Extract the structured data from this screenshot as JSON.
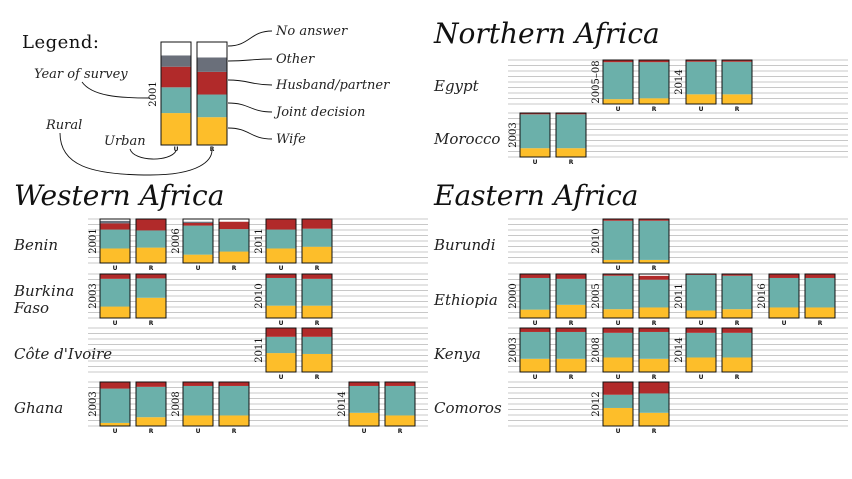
{
  "legend": {
    "title": "Legend:",
    "labels": {
      "no_answer": "No answer",
      "other": "Other",
      "husband": "Husband/partner",
      "joint": "Joint decision",
      "wife": "Wife",
      "year_of_survey": "Year of survey",
      "rural": "Rural",
      "urban": "Urban"
    },
    "example_year": "2001",
    "example_bars": [
      {
        "key": "U",
        "values": [
          0.31,
          0.25,
          0.2,
          0.11,
          0.09
        ]
      },
      {
        "key": "R",
        "values": [
          0.27,
          0.22,
          0.22,
          0.14,
          0.11
        ]
      }
    ]
  },
  "colors": {
    "wife": "#FDBE2A",
    "joint": "#6BB0AA",
    "husband": "#B12A2A",
    "other": "#6A6F7A",
    "no_answer": "#FFFFFF"
  },
  "chart_data": {
    "type": "bar",
    "subtype": "stacked-100-percent",
    "categories_order": [
      "Wife",
      "Joint decision",
      "Husband/partner",
      "Other",
      "No answer"
    ],
    "regions": [
      {
        "name": "Western Africa",
        "countries": [
          {
            "name": "Benin",
            "surveys": [
              {
                "year": "2001",
                "bars": [
                  {
                    "key": "U",
                    "values": [
                      0.33,
                      0.43,
                      0.14,
                      0.06,
                      0.04
                    ]
                  },
                  {
                    "key": "R",
                    "values": [
                      0.35,
                      0.39,
                      0.26,
                      0,
                      0
                    ]
                  }
                ]
              },
              {
                "year": "2006",
                "bars": [
                  {
                    "key": "U",
                    "values": [
                      0.19,
                      0.66,
                      0.06,
                      0.03,
                      0.06
                    ]
                  },
                  {
                    "key": "R",
                    "values": [
                      0.26,
                      0.51,
                      0.17,
                      0,
                      0.06
                    ]
                  }
                ]
              },
              {
                "year": "2011",
                "bars": [
                  {
                    "key": "U",
                    "values": [
                      0.33,
                      0.43,
                      0.24,
                      0,
                      0
                    ]
                  },
                  {
                    "key": "R",
                    "values": [
                      0.37,
                      0.41,
                      0.22,
                      0,
                      0
                    ]
                  }
                ]
              }
            ]
          },
          {
            "name": "Burkina Faso",
            "surveys": [
              {
                "year": "2003",
                "bars": [
                  {
                    "key": "U",
                    "values": [
                      0.26,
                      0.63,
                      0.11,
                      0,
                      0
                    ]
                  },
                  {
                    "key": "R",
                    "values": [
                      0.46,
                      0.44,
                      0.1,
                      0,
                      0
                    ]
                  }
                ]
              },
              {
                "year": "2010",
                "bars": [
                  {
                    "key": "U",
                    "values": [
                      0.28,
                      0.63,
                      0.09,
                      0,
                      0
                    ]
                  },
                  {
                    "key": "R",
                    "values": [
                      0.28,
                      0.61,
                      0.11,
                      0,
                      0
                    ]
                  }
                ]
              }
            ]
          },
          {
            "name": "Côte d'Ivoire",
            "surveys": [
              {
                "year": "2011",
                "bars": [
                  {
                    "key": "U",
                    "values": [
                      0.43,
                      0.37,
                      0.2,
                      0,
                      0
                    ]
                  },
                  {
                    "key": "R",
                    "values": [
                      0.41,
                      0.39,
                      0.2,
                      0,
                      0
                    ]
                  }
                ]
              }
            ]
          },
          {
            "name": "Ghana",
            "surveys": [
              {
                "year": "2003",
                "bars": [
                  {
                    "key": "U",
                    "values": [
                      0.07,
                      0.78,
                      0.15,
                      0,
                      0
                    ]
                  },
                  {
                    "key": "R",
                    "values": [
                      0.2,
                      0.69,
                      0.11,
                      0,
                      0
                    ]
                  }
                ]
              },
              {
                "year": "2008",
                "bars": [
                  {
                    "key": "U",
                    "values": [
                      0.24,
                      0.67,
                      0.09,
                      0,
                      0
                    ]
                  },
                  {
                    "key": "R",
                    "values": [
                      0.24,
                      0.67,
                      0.09,
                      0,
                      0
                    ]
                  }
                ]
              },
              {
                "year": "2014",
                "bars": [
                  {
                    "key": "U",
                    "values": [
                      0.3,
                      0.61,
                      0.09,
                      0,
                      0
                    ]
                  },
                  {
                    "key": "R",
                    "values": [
                      0.24,
                      0.67,
                      0.09,
                      0,
                      0
                    ]
                  }
                ]
              }
            ]
          }
        ]
      },
      {
        "name": "Northern Africa",
        "countries": [
          {
            "name": "Egypt",
            "surveys": [
              {
                "year": "2005–08",
                "bars": [
                  {
                    "key": "U",
                    "values": [
                      0.11,
                      0.84,
                      0.05,
                      0,
                      0
                    ]
                  },
                  {
                    "key": "R",
                    "values": [
                      0.13,
                      0.82,
                      0.05,
                      0,
                      0
                    ]
                  }
                ]
              },
              {
                "year": "2014",
                "bars": [
                  {
                    "key": "U",
                    "values": [
                      0.22,
                      0.74,
                      0.04,
                      0,
                      0
                    ]
                  },
                  {
                    "key": "R",
                    "values": [
                      0.22,
                      0.74,
                      0.04,
                      0,
                      0
                    ]
                  }
                ]
              }
            ]
          },
          {
            "name": "Morocco",
            "surveys": [
              {
                "year": "2003",
                "bars": [
                  {
                    "key": "U",
                    "values": [
                      0.2,
                      0.77,
                      0.03,
                      0,
                      0
                    ]
                  },
                  {
                    "key": "R",
                    "values": [
                      0.2,
                      0.77,
                      0.03,
                      0,
                      0
                    ]
                  }
                ]
              }
            ]
          }
        ]
      },
      {
        "name": "Eastern Africa",
        "countries": [
          {
            "name": "Burundi",
            "surveys": [
              {
                "year": "2010",
                "bars": [
                  {
                    "key": "U",
                    "values": [
                      0.07,
                      0.89,
                      0.04,
                      0,
                      0
                    ]
                  },
                  {
                    "key": "R",
                    "values": [
                      0.07,
                      0.89,
                      0.04,
                      0,
                      0
                    ]
                  }
                ]
              }
            ]
          },
          {
            "name": "Ethiopia",
            "surveys": [
              {
                "year": "2000",
                "bars": [
                  {
                    "key": "U",
                    "values": [
                      0.19,
                      0.72,
                      0.09,
                      0,
                      0
                    ]
                  },
                  {
                    "key": "R",
                    "values": [
                      0.3,
                      0.59,
                      0.11,
                      0,
                      0
                    ]
                  }
                ]
              },
              {
                "year": "2005",
                "bars": [
                  {
                    "key": "U",
                    "values": [
                      0.2,
                      0.76,
                      0.04,
                      0,
                      0
                    ]
                  },
                  {
                    "key": "R",
                    "values": [
                      0.24,
                      0.63,
                      0.09,
                      0,
                      0.04
                    ]
                  }
                ]
              },
              {
                "year": "2011",
                "bars": [
                  {
                    "key": "U",
                    "values": [
                      0.17,
                      0.81,
                      0.02,
                      0,
                      0
                    ]
                  },
                  {
                    "key": "R",
                    "values": [
                      0.2,
                      0.76,
                      0.04,
                      0,
                      0
                    ]
                  }
                ]
              },
              {
                "year": "2016",
                "bars": [
                  {
                    "key": "U",
                    "values": [
                      0.24,
                      0.67,
                      0.09,
                      0,
                      0
                    ]
                  },
                  {
                    "key": "R",
                    "values": [
                      0.24,
                      0.67,
                      0.09,
                      0,
                      0
                    ]
                  }
                ]
              }
            ]
          },
          {
            "name": "Kenya",
            "surveys": [
              {
                "year": "2003",
                "bars": [
                  {
                    "key": "U",
                    "values": [
                      0.3,
                      0.61,
                      0.09,
                      0,
                      0
                    ]
                  },
                  {
                    "key": "R",
                    "values": [
                      0.3,
                      0.61,
                      0.09,
                      0,
                      0
                    ]
                  }
                ]
              },
              {
                "year": "2008",
                "bars": [
                  {
                    "key": "U",
                    "values": [
                      0.33,
                      0.56,
                      0.11,
                      0,
                      0
                    ]
                  },
                  {
                    "key": "R",
                    "values": [
                      0.3,
                      0.61,
                      0.09,
                      0,
                      0
                    ]
                  }
                ]
              },
              {
                "year": "2014",
                "bars": [
                  {
                    "key": "U",
                    "values": [
                      0.33,
                      0.56,
                      0.11,
                      0,
                      0
                    ]
                  },
                  {
                    "key": "R",
                    "values": [
                      0.33,
                      0.56,
                      0.11,
                      0,
                      0
                    ]
                  }
                ]
              }
            ]
          },
          {
            "name": "Comoros",
            "surveys": [
              {
                "year": "2012",
                "bars": [
                  {
                    "key": "U",
                    "values": [
                      0.41,
                      0.3,
                      0.29,
                      0,
                      0
                    ]
                  },
                  {
                    "key": "R",
                    "values": [
                      0.3,
                      0.44,
                      0.26,
                      0,
                      0
                    ]
                  }
                ]
              }
            ]
          }
        ]
      }
    ]
  }
}
